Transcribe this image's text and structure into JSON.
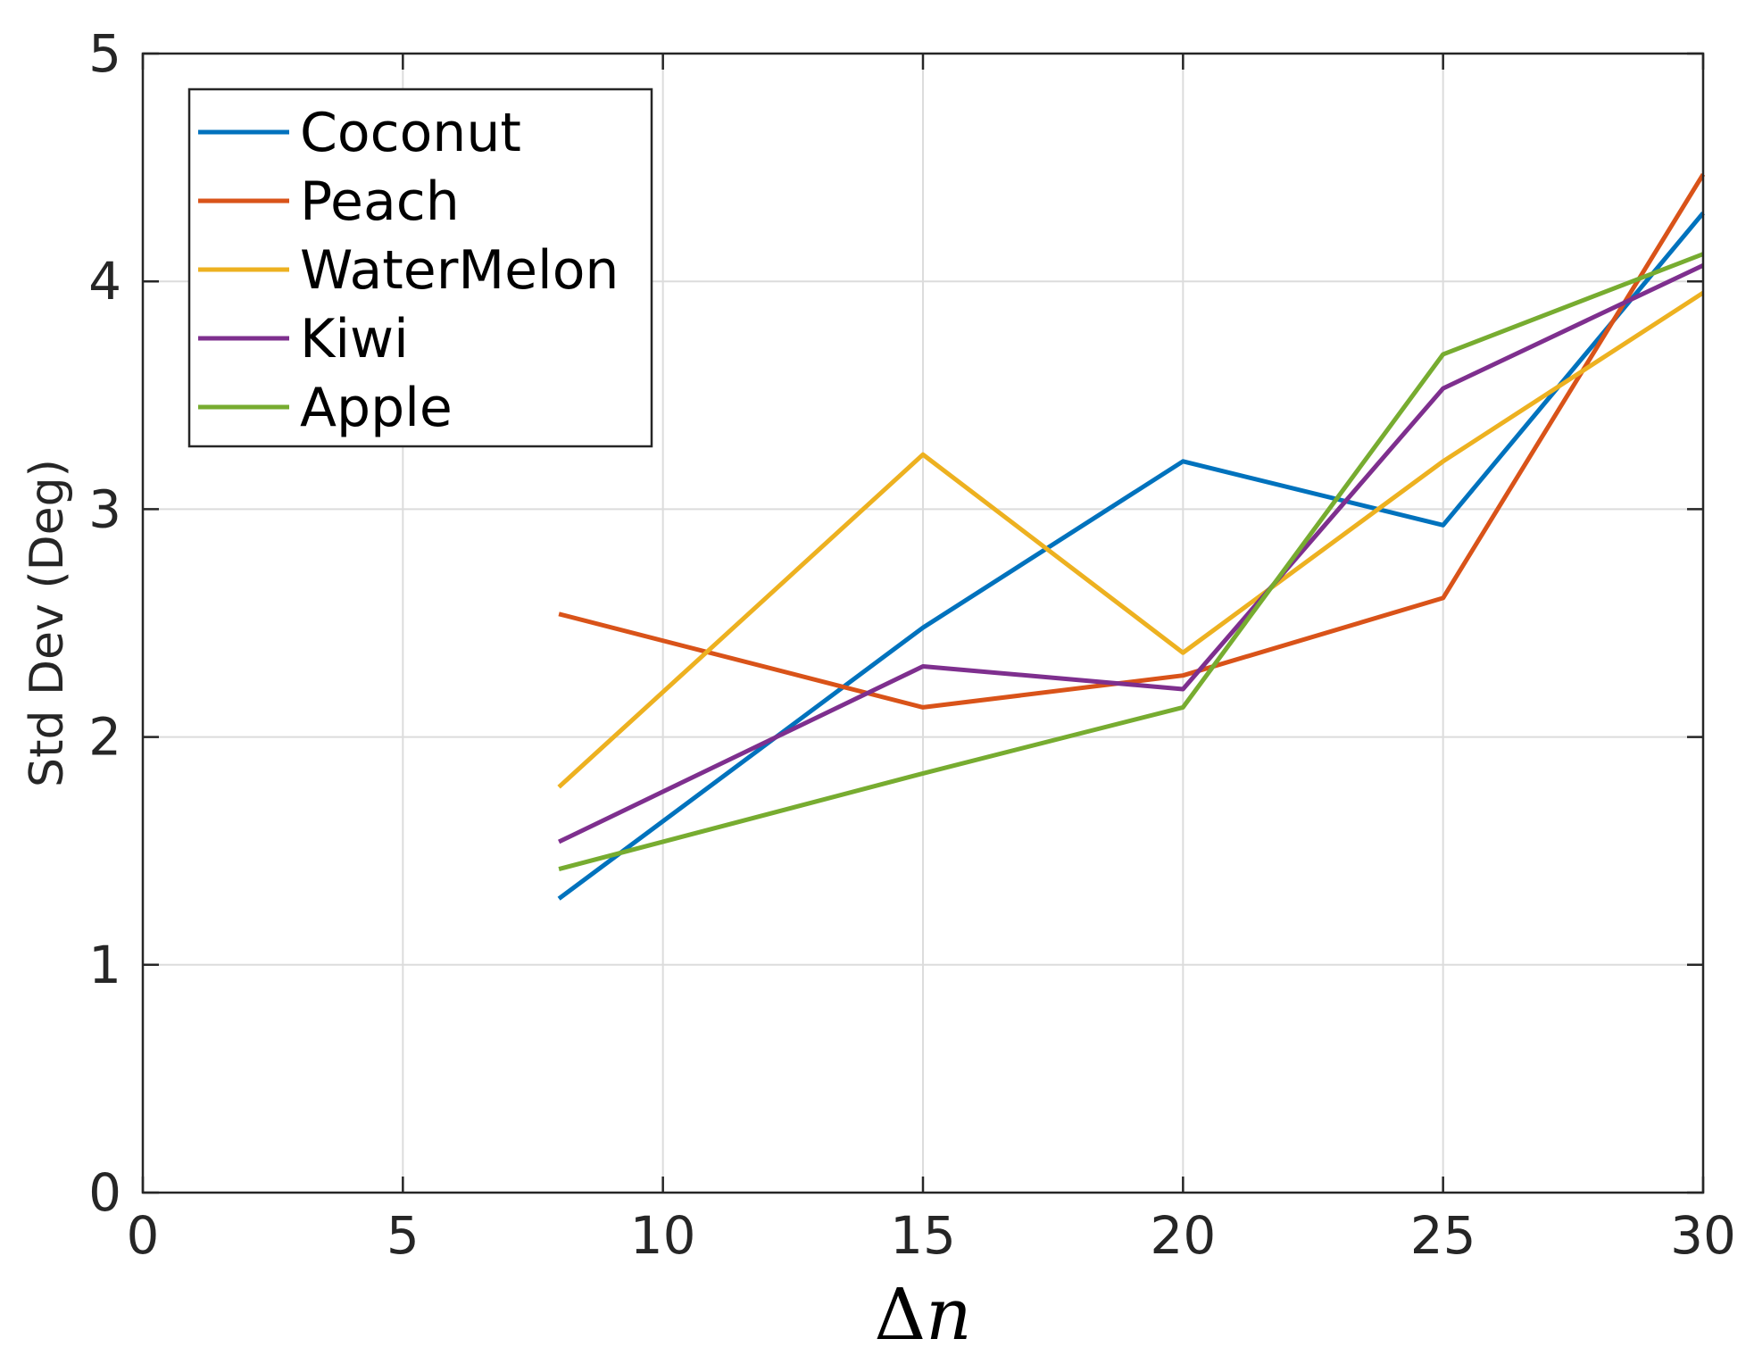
{
  "chart_data": {
    "type": "line",
    "title": "",
    "xlabel": "Δn",
    "ylabel": "Std Dev (Deg)",
    "xlim": [
      0,
      30
    ],
    "ylim": [
      0,
      5
    ],
    "xticks": [
      0,
      5,
      10,
      15,
      20,
      25,
      30
    ],
    "yticks": [
      0,
      1,
      2,
      3,
      4,
      5
    ],
    "grid": true,
    "legend_position": "top-left",
    "x": [
      8,
      15,
      20,
      25,
      30
    ],
    "series": [
      {
        "name": "Coconut",
        "color": "#0072BD",
        "values": [
          1.29,
          2.48,
          3.21,
          2.93,
          4.3
        ]
      },
      {
        "name": "Peach",
        "color": "#D95319",
        "values": [
          2.54,
          2.13,
          2.27,
          2.61,
          4.47
        ]
      },
      {
        "name": "WaterMelon",
        "color": "#EDB120",
        "values": [
          1.78,
          3.24,
          2.37,
          3.21,
          3.95
        ]
      },
      {
        "name": "Kiwi",
        "color": "#7E2F8E",
        "values": [
          1.54,
          2.31,
          2.21,
          3.53,
          4.07
        ]
      },
      {
        "name": "Apple",
        "color": "#77AC30",
        "values": [
          1.42,
          1.84,
          2.13,
          3.68,
          4.12
        ]
      }
    ]
  }
}
